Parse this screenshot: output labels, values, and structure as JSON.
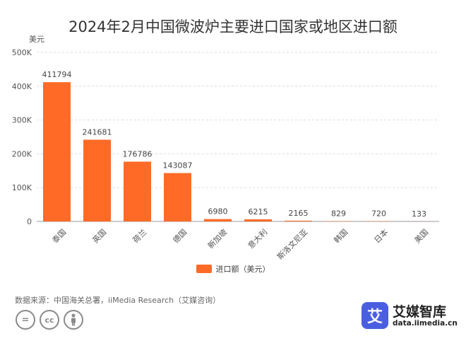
{
  "chart_data": {
    "type": "bar",
    "title": "2024年2月中国微波炉主要进口国家或地区进口额",
    "ylabel": "美元",
    "categories": [
      "泰国",
      "英国",
      "荷兰",
      "德国",
      "新加坡",
      "意大利",
      "斯洛文尼亚",
      "韩国",
      "日本",
      "美国"
    ],
    "series": [
      {
        "name": "进口额（美元）",
        "values": [
          411794,
          241681,
          176786,
          143087,
          6980,
          6215,
          2165,
          829,
          720,
          133
        ]
      }
    ],
    "data_labels": [
      "411794",
      "241681",
      "176786",
      "143087",
      "6980",
      "6215",
      "2165",
      "829",
      "720",
      "133"
    ],
    "ylim": [
      0,
      500000
    ],
    "yticks": [
      0,
      100000,
      200000,
      300000,
      400000,
      500000
    ],
    "ytick_labels": [
      "0",
      "100K",
      "200K",
      "300K",
      "400K",
      "500K"
    ],
    "grid": true,
    "legend_position": "bottom",
    "bar_color": "#ff6b26"
  },
  "source": "数据来源：中国海关总署，iiMedia Research（艾媒咨询）",
  "license_icons": [
    "equal-icon",
    "cc-icon",
    "person-icon"
  ],
  "license_labels": [
    "=",
    "cc"
  ],
  "brand": {
    "logo_char": "艾",
    "name": "艾媒智库",
    "url": "data.iimedia.cn",
    "color": "#4a5fe0"
  }
}
